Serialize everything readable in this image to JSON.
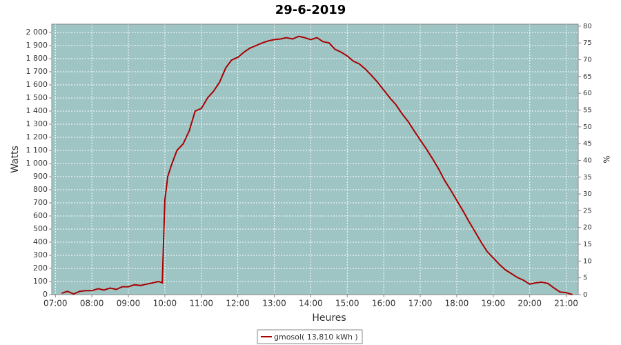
{
  "chart_data": {
    "type": "line",
    "title": "29-6-2019",
    "x_label": "Heures",
    "y_label": "Watts",
    "y2_label": "%",
    "xlim": [
      6.9,
      21.33
    ],
    "ylim": [
      0,
      2063
    ],
    "y2lim": [
      0,
      80.6
    ],
    "grid": true,
    "legend": "bottom",
    "background": "#9ec4c4",
    "xticks": [
      {
        "value": 7,
        "label": "07:00"
      },
      {
        "value": 8,
        "label": "08:00"
      },
      {
        "value": 9,
        "label": "09:00"
      },
      {
        "value": 10,
        "label": "10:00"
      },
      {
        "value": 11,
        "label": "11:00"
      },
      {
        "value": 12,
        "label": "12:00"
      },
      {
        "value": 13,
        "label": "13:00"
      },
      {
        "value": 14,
        "label": "14:00"
      },
      {
        "value": 15,
        "label": "15:00"
      },
      {
        "value": 16,
        "label": "16:00"
      },
      {
        "value": 17,
        "label": "17:00"
      },
      {
        "value": 18,
        "label": "18:00"
      },
      {
        "value": 19,
        "label": "19:00"
      },
      {
        "value": 20,
        "label": "20:00"
      },
      {
        "value": 21,
        "label": "21:00"
      }
    ],
    "yticks": [
      0,
      100,
      200,
      300,
      400,
      500,
      600,
      700,
      800,
      900,
      {
        "value": 1000,
        "label": "1 000"
      },
      {
        "value": 1100,
        "label": "1 100"
      },
      {
        "value": 1200,
        "label": "1 200"
      },
      {
        "value": 1300,
        "label": "1 300"
      },
      {
        "value": 1400,
        "label": "1 400"
      },
      {
        "value": 1500,
        "label": "1 500"
      },
      {
        "value": 1600,
        "label": "1 600"
      },
      {
        "value": 1700,
        "label": "1 700"
      },
      {
        "value": 1800,
        "label": "1 800"
      },
      {
        "value": 1900,
        "label": "1 900"
      },
      {
        "value": 2000,
        "label": "2 000"
      }
    ],
    "y2ticks": [
      0,
      5,
      10,
      15,
      20,
      25,
      30,
      35,
      40,
      45,
      50,
      55,
      60,
      65,
      70,
      75,
      80
    ],
    "x": [
      7.17,
      7.33,
      7.5,
      7.67,
      7.83,
      8.0,
      8.17,
      8.33,
      8.5,
      8.67,
      8.83,
      9.0,
      9.17,
      9.33,
      9.5,
      9.67,
      9.83,
      9.93,
      10.0,
      10.08,
      10.17,
      10.33,
      10.5,
      10.67,
      10.83,
      11.0,
      11.17,
      11.33,
      11.5,
      11.67,
      11.83,
      12.0,
      12.17,
      12.33,
      12.5,
      12.67,
      12.83,
      13.0,
      13.17,
      13.33,
      13.5,
      13.67,
      13.83,
      14.0,
      14.17,
      14.33,
      14.5,
      14.67,
      14.83,
      15.0,
      15.17,
      15.33,
      15.5,
      15.67,
      15.83,
      16.0,
      16.17,
      16.33,
      16.5,
      16.67,
      16.83,
      17.0,
      17.17,
      17.33,
      17.5,
      17.67,
      17.83,
      18.0,
      18.17,
      18.33,
      18.5,
      18.67,
      18.83,
      19.0,
      19.17,
      19.33,
      19.5,
      19.67,
      19.83,
      20.0,
      20.17,
      20.33,
      20.5,
      20.67,
      20.83,
      21.0,
      21.17
    ],
    "series": [
      {
        "name": "gmosol( 13,810 kWh )",
        "color": "#aa0000",
        "values": [
          10,
          25,
          5,
          25,
          30,
          30,
          45,
          35,
          50,
          40,
          60,
          60,
          75,
          70,
          80,
          90,
          100,
          90,
          720,
          900,
          980,
          1100,
          1150,
          1250,
          1400,
          1420,
          1500,
          1550,
          1620,
          1730,
          1790,
          1810,
          1850,
          1880,
          1900,
          1920,
          1935,
          1945,
          1950,
          1960,
          1950,
          1970,
          1960,
          1945,
          1960,
          1930,
          1920,
          1870,
          1850,
          1820,
          1780,
          1760,
          1720,
          1670,
          1620,
          1560,
          1500,
          1450,
          1380,
          1320,
          1250,
          1180,
          1110,
          1040,
          960,
          870,
          800,
          720,
          640,
          560,
          480,
          400,
          330,
          280,
          230,
          190,
          160,
          130,
          110,
          80,
          90,
          95,
          85,
          50,
          20,
          15,
          0
        ]
      }
    ]
  }
}
